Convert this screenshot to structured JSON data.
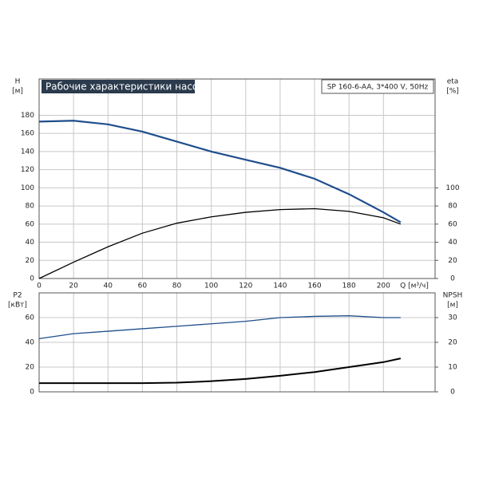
{
  "chart_data": [
    {
      "type": "line",
      "title": "Рабочие характеристики насоса",
      "subtitle": "SP 160-6-AA, 3*400 V, 50Hz",
      "y_label": "H",
      "y_unit": "[м]",
      "y2_label": "eta",
      "y2_unit": "[%]",
      "x_label": "Q [м³/ч]",
      "x": [
        0,
        20,
        40,
        60,
        80,
        100,
        120,
        140,
        160,
        180,
        200,
        210
      ],
      "series": [
        {
          "name": "H",
          "color": "#1f4e8c",
          "values": [
            173,
            174,
            170,
            162,
            151,
            140,
            131,
            122,
            110,
            93,
            73,
            62
          ]
        },
        {
          "name": "eta",
          "color": "#000000",
          "axis": "y2",
          "values": [
            0,
            18,
            35,
            50,
            61,
            68,
            73,
            76,
            77,
            74,
            67,
            60
          ]
        }
      ],
      "xlim": [
        0,
        230
      ],
      "xticks": [
        0,
        20,
        40,
        60,
        80,
        100,
        120,
        140,
        160,
        180,
        200
      ],
      "ylim": [
        0,
        220
      ],
      "yticks": [
        0,
        20,
        40,
        60,
        80,
        100,
        120,
        140,
        160,
        180
      ],
      "y2lim": [
        0,
        220
      ],
      "y2ticks": [
        0,
        20,
        40,
        60,
        80,
        100
      ],
      "grid": true
    },
    {
      "type": "line",
      "y_label": "P2",
      "y_unit": "[кВт]",
      "y2_label": "NPSH",
      "y2_unit": "[м]",
      "x": [
        0,
        20,
        40,
        60,
        80,
        100,
        120,
        140,
        160,
        180,
        200,
        210
      ],
      "series": [
        {
          "name": "P2",
          "color": "#1f4e8c",
          "values": [
            43,
            47,
            49,
            51,
            53,
            55,
            57,
            60,
            61,
            61.5,
            60,
            60
          ]
        },
        {
          "name": "NPSH",
          "color": "#000000",
          "axis": "y2",
          "values": [
            3.5,
            3.5,
            3.5,
            3.5,
            3.7,
            4.3,
            5.2,
            6.5,
            8,
            10,
            12,
            13.5
          ]
        }
      ],
      "xlim": [
        0,
        230
      ],
      "ylim": [
        0,
        80
      ],
      "yticks": [
        0,
        20,
        40,
        60
      ],
      "y2lim": [
        0,
        40
      ],
      "y2ticks": [
        0,
        10,
        20,
        30
      ],
      "grid": true
    }
  ]
}
